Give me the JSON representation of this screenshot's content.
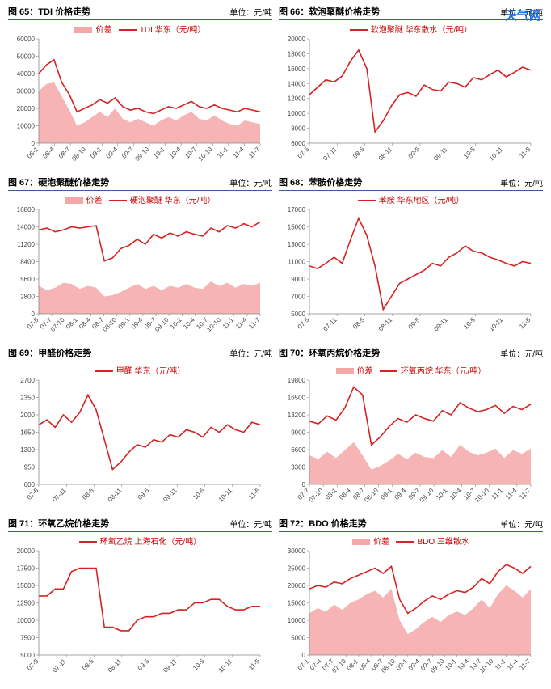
{
  "watermark": {
    "text": "天气网",
    "color": "#1e6fd9"
  },
  "unit_label": "单位：元/吨",
  "colors": {
    "line": "#d62222",
    "area_fill": "#f5a7a7",
    "area_fill_light": "#fbd0d0",
    "title_border": "#3a5a99",
    "background": "#ffffff"
  },
  "charts": [
    {
      "id": "c65",
      "title": "图 65：TDI 价格走势",
      "legend_area": "价差",
      "legend_line": "TDI  华东（元/吨）",
      "ylim": [
        0,
        60000
      ],
      "ytick_step": 10000,
      "x_labels": [
        "08-1",
        "08-4",
        "08-7",
        "08-10",
        "09-1",
        "09-4",
        "09-7",
        "09-10",
        "10-1",
        "10-4",
        "10-7",
        "10-10",
        "11-1",
        "11-4",
        "11-7"
      ],
      "line": [
        40000,
        45000,
        48000,
        35000,
        28000,
        18000,
        20000,
        22000,
        25000,
        23000,
        26000,
        21000,
        19000,
        20000,
        18000,
        17000,
        19000,
        21000,
        20000,
        22000,
        24000,
        21000,
        20000,
        22000,
        20000,
        19000,
        18000,
        20000,
        19000,
        18000
      ],
      "area": [
        30000,
        34000,
        35000,
        27000,
        19000,
        10000,
        12000,
        15000,
        18000,
        15000,
        20000,
        14000,
        12000,
        14000,
        12000,
        10000,
        13000,
        15000,
        13000,
        16000,
        18000,
        14000,
        13000,
        16000,
        13000,
        11000,
        10000,
        13000,
        12000,
        11000
      ]
    },
    {
      "id": "c66",
      "title": "图 66：软泡聚醚价格走势",
      "legend_line": "软泡聚醚  华东散水（元/吨）",
      "ylim": [
        6000,
        20000
      ],
      "ytick_step": 2000,
      "x_labels": [
        "07-5",
        "07-11",
        "08-5",
        "08-11",
        "09-5",
        "09-11",
        "10-5",
        "10-11",
        "11-5"
      ],
      "line": [
        12500,
        13500,
        14500,
        14200,
        15000,
        17000,
        18500,
        16000,
        7500,
        9000,
        11000,
        12500,
        12800,
        12300,
        13800,
        13200,
        13000,
        14200,
        14000,
        13500,
        14800,
        14500,
        15200,
        15800,
        14900,
        15500,
        16200,
        15800
      ]
    },
    {
      "id": "c67",
      "title": "图 67：硬泡聚醚价格走势",
      "legend_area": "价差",
      "legend_line": "硬泡聚醚  华东（元/吨）",
      "ylim": [
        0,
        16800
      ],
      "ytick_step": 2800,
      "x_labels": [
        "07-5",
        "07-7",
        "07-10",
        "08-1",
        "08-4",
        "08-7",
        "08-10",
        "09-1",
        "09-4",
        "09-7",
        "09-10",
        "10-1",
        "10-4",
        "10-7",
        "10-10",
        "11-1",
        "11-4",
        "11-7"
      ],
      "line": [
        13500,
        13800,
        13200,
        13500,
        14000,
        13800,
        14000,
        14200,
        8500,
        9000,
        10500,
        11000,
        12000,
        11200,
        12800,
        12200,
        13000,
        12500,
        13200,
        12800,
        12500,
        13800,
        13200,
        14200,
        13800,
        14500,
        14000,
        14800
      ],
      "area": [
        4500,
        3800,
        4200,
        5000,
        4800,
        4000,
        4500,
        4200,
        2800,
        3000,
        3500,
        4200,
        4800,
        4000,
        4500,
        3800,
        4500,
        4200,
        4800,
        4200,
        4000,
        5200,
        4500,
        5000,
        4200,
        4800,
        4500,
        5000
      ]
    },
    {
      "id": "c68",
      "title": "图 68：苯胺价格走势",
      "legend_line": "苯胺  华东地区（元/吨）",
      "ylim": [
        5000,
        17000
      ],
      "ytick_step": 2000,
      "x_labels": [
        "07-5",
        "07-11",
        "08-5",
        "08-11",
        "09-5",
        "09-11",
        "10-5",
        "10-11",
        "11-5"
      ],
      "line": [
        10500,
        10200,
        10800,
        11500,
        10800,
        13500,
        16000,
        14000,
        10500,
        5500,
        7000,
        8500,
        9000,
        9500,
        10000,
        10800,
        10500,
        11500,
        12000,
        12800,
        12200,
        12000,
        11500,
        11200,
        10800,
        10500,
        11000,
        10800
      ]
    },
    {
      "id": "c69",
      "title": "图 69：甲醛价格走势",
      "legend_line": "甲醛  华东（元/吨）",
      "ylim": [
        600,
        2700
      ],
      "ytick_step": 350,
      "x_labels": [
        "07-5",
        "07-11",
        "08-5",
        "08-11",
        "09-5",
        "09-11",
        "10-5",
        "10-11",
        "11-5"
      ],
      "line": [
        1800,
        1900,
        1750,
        2000,
        1850,
        2050,
        2400,
        2100,
        1500,
        900,
        1050,
        1250,
        1400,
        1350,
        1500,
        1450,
        1600,
        1550,
        1700,
        1650,
        1550,
        1750,
        1650,
        1800,
        1700,
        1650,
        1850,
        1800
      ]
    },
    {
      "id": "c70",
      "title": "图 70：环氧丙烷价格走势",
      "legend_area": "价差",
      "legend_line": "环氧丙烷  华东（元/吨）",
      "ylim": [
        0,
        19800
      ],
      "ytick_step": 3300,
      "x_labels": [
        "07-7",
        "07-10",
        "08-1",
        "08-4",
        "08-7",
        "08-10",
        "09-1",
        "09-4",
        "09-7",
        "09-10",
        "10-1",
        "10-4",
        "10-7",
        "10-10",
        "11-1",
        "11-4",
        "11-7"
      ],
      "line": [
        12000,
        11500,
        13000,
        12200,
        14500,
        18500,
        17000,
        7500,
        9000,
        11000,
        12500,
        11800,
        13200,
        12500,
        12000,
        14000,
        13200,
        15500,
        14500,
        13800,
        14200,
        15000,
        13500,
        14800,
        14200,
        15200
      ],
      "area": [
        5500,
        4800,
        6200,
        5000,
        6500,
        8000,
        5500,
        2800,
        3500,
        4500,
        5800,
        4800,
        6000,
        5200,
        5000,
        6500,
        5200,
        7500,
        6200,
        5500,
        6000,
        6800,
        5000,
        6500,
        5800,
        6800
      ]
    },
    {
      "id": "c71",
      "title": "图 71：环氧乙烷价格走势",
      "legend_line": "环氧乙烷  上海石化（元/吨）",
      "ylim": [
        5000,
        20000
      ],
      "ytick_step": 2500,
      "x_labels": [
        "07-5",
        "07-11",
        "08-5",
        "08-11",
        "09-5",
        "09-11",
        "10-5",
        "10-11",
        "11-5"
      ],
      "line": [
        13500,
        13500,
        14500,
        14500,
        17000,
        17500,
        17500,
        17500,
        9000,
        9000,
        8500,
        8500,
        10000,
        10500,
        10500,
        11000,
        11000,
        11500,
        11500,
        12500,
        12500,
        13000,
        13000,
        12000,
        11500,
        11500,
        12000,
        12000
      ]
    },
    {
      "id": "c72",
      "title": "图 72：BDO 价格走势",
      "legend_area": "价差",
      "legend_line": "BDO  三维散水",
      "ylim": [
        0,
        30000
      ],
      "ytick_step": 5000,
      "x_labels": [
        "07-1",
        "07-4",
        "07-7",
        "07-10",
        "08-1",
        "08-4",
        "08-7",
        "08-10",
        "09-1",
        "09-4",
        "09-7",
        "09-10",
        "10-1",
        "10-4",
        "10-7",
        "10-10",
        "11-1",
        "11-4",
        "11-7"
      ],
      "line": [
        19000,
        20000,
        19500,
        21000,
        20500,
        22000,
        23000,
        24000,
        25000,
        23500,
        25500,
        16000,
        12000,
        13500,
        15500,
        17000,
        16000,
        17500,
        18500,
        18000,
        19500,
        22000,
        20500,
        24000,
        26000,
        25000,
        23500,
        25500
      ],
      "area": [
        12000,
        13500,
        12500,
        14500,
        13000,
        15000,
        16000,
        17500,
        18500,
        16500,
        19000,
        10000,
        6000,
        7500,
        9500,
        11000,
        9500,
        11500,
        12500,
        11500,
        13500,
        16000,
        13500,
        17500,
        20000,
        18500,
        16500,
        19000
      ]
    }
  ]
}
